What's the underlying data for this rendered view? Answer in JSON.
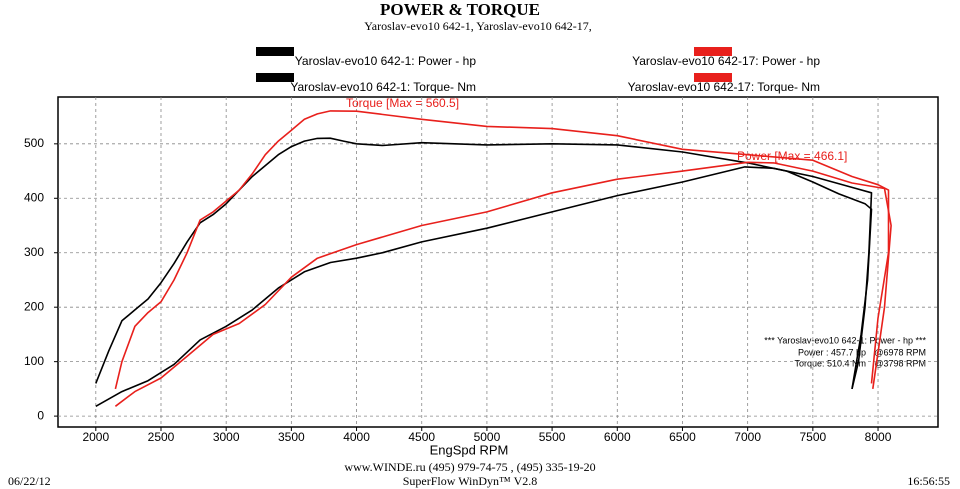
{
  "chart_data": {
    "type": "line",
    "title": "POWER & TORQUE",
    "subtitle": "Yaroslav-evo10 642-1, Yaroslav-evo10 642-17,",
    "x_label": "EngSpd  RPM",
    "xlim": [
      1710,
      8460
    ],
    "ylim": [
      -20,
      586
    ],
    "xticks": [
      2000,
      2500,
      3000,
      3500,
      4000,
      4500,
      5000,
      5500,
      6000,
      6500,
      7000,
      7500,
      8000
    ],
    "yticks": [
      0,
      100,
      200,
      300,
      400,
      500
    ],
    "grid": true,
    "annotations": [
      "Torque [Max = 560.5]",
      "Power  [Max = 466.1]"
    ],
    "info_box": [
      "*** Yaroslav-evo10 642-1:  Power -  hp   ***",
      "Power :  457.7 hp",
      "@6978 RPM",
      "Torque:  510.4 Nm",
      "@3798 RPM"
    ],
    "footer": [
      "www.WINDE.ru  (495) 979-74-75 , (495) 335-19-20",
      "SuperFlow WinDyn™ V2.8"
    ],
    "date": "06/22/12",
    "time": "16:56:55",
    "series": [
      {
        "name": "Yaroslav-evo10 642-1: Power -  hp",
        "color": "#000000",
        "x": [
          2000,
          2200,
          2400,
          2600,
          2800,
          3000,
          3200,
          3400,
          3600,
          3800,
          4000,
          4200,
          4500,
          5000,
          5500,
          6000,
          6500,
          6978,
          7200,
          7500,
          7800,
          7950,
          7930,
          7900,
          7850,
          7800
        ],
        "values": [
          18,
          45,
          65,
          95,
          140,
          165,
          195,
          235,
          265,
          282,
          290,
          300,
          320,
          345,
          375,
          405,
          430,
          457.7,
          455,
          440,
          420,
          410,
          300,
          200,
          100,
          50
        ]
      },
      {
        "name": "Yaroslav-evo10 642-1: Torque-  Nm",
        "color": "#000000",
        "x": [
          2000,
          2100,
          2200,
          2300,
          2400,
          2500,
          2600,
          2700,
          2800,
          2900,
          3000,
          3100,
          3200,
          3300,
          3400,
          3500,
          3600,
          3700,
          3798,
          3900,
          4000,
          4200,
          4500,
          5000,
          5500,
          6000,
          6500,
          7000,
          7300,
          7500,
          7700,
          7900,
          7950,
          7920,
          7870,
          7800
        ],
        "values": [
          60,
          120,
          175,
          195,
          215,
          245,
          280,
          320,
          355,
          370,
          390,
          415,
          440,
          460,
          480,
          495,
          505,
          510,
          510.4,
          505,
          500,
          497,
          502,
          498,
          500,
          498,
          485,
          465,
          450,
          430,
          408,
          390,
          380,
          250,
          150,
          50
        ]
      },
      {
        "name": "Yaroslav-evo10 642-17: Power -  hp",
        "color": "#e8201c",
        "x": [
          2150,
          2300,
          2500,
          2700,
          2900,
          3100,
          3300,
          3500,
          3700,
          4000,
          4500,
          5000,
          5500,
          6000,
          6500,
          7000,
          7200,
          7500,
          7800,
          8050,
          8100,
          8050,
          7960
        ],
        "values": [
          18,
          45,
          70,
          110,
          150,
          170,
          205,
          255,
          290,
          315,
          350,
          375,
          410,
          435,
          450,
          466.1,
          465,
          450,
          428,
          418,
          350,
          200,
          50
        ]
      },
      {
        "name": "Yaroslav-evo10 642-17: Torque-  Nm",
        "color": "#e8201c",
        "x": [
          2150,
          2200,
          2300,
          2400,
          2500,
          2600,
          2700,
          2800,
          2900,
          3000,
          3100,
          3200,
          3300,
          3400,
          3500,
          3600,
          3700,
          3800,
          4000,
          4500,
          5000,
          5500,
          6000,
          6500,
          7000,
          7500,
          7800,
          8000,
          8080,
          8080,
          8000,
          7950
        ],
        "values": [
          50,
          100,
          165,
          190,
          210,
          250,
          300,
          360,
          375,
          395,
          415,
          445,
          480,
          505,
          525,
          545,
          555,
          560.5,
          560,
          545,
          532,
          528,
          515,
          490,
          480,
          470,
          440,
          425,
          415,
          300,
          180,
          60
        ]
      }
    ]
  }
}
